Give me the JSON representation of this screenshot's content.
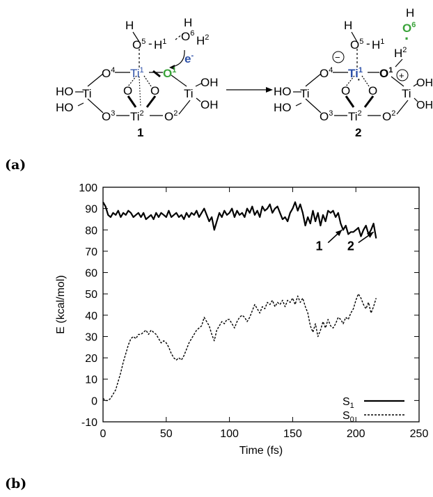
{
  "panels": {
    "a": "(a)",
    "b": "(b)"
  },
  "colors": {
    "ti1": "#2b4fa8",
    "o1": "#3aa33a",
    "o6": "#3aa33a",
    "electron": "#2b4fa8",
    "line": "#000000"
  },
  "scheme": {
    "struct1": {
      "number": "1",
      "atoms": {
        "h_top": "H",
        "o5": "O",
        "o5_sup": "5",
        "h1": "H",
        "h1_sup": "1",
        "o6": "O",
        "o6_sup": "6",
        "h2": "H",
        "h2_sup": "2",
        "electron": "e",
        "electron_sup": "-",
        "o4": "O",
        "o4_sup": "4",
        "ti1": "Ti",
        "ti1_sup": "1",
        "o1": "O",
        "o1_sup": "1",
        "ti_left": "Ti",
        "ho_left_top": "HO",
        "ho_left_bot": "HO",
        "o_mid_left": "O",
        "o_mid_right": "O",
        "ti_right": "Ti",
        "oh_right_top": "OH",
        "oh_right_bot": "OH",
        "o3": "O",
        "o3_sup": "3",
        "ti2": "Ti",
        "ti2_sup": "2",
        "o2": "O",
        "o2_sup": "2"
      }
    },
    "struct2": {
      "number": "2",
      "atoms": {
        "h_top": "H",
        "o5": "O",
        "o5_sup": "5",
        "h1": "H",
        "h1_sup": "1",
        "h_o6": "H",
        "o6": "O",
        "o6_sup": "6",
        "radical": "·",
        "h2": "H",
        "h2_sup": "2",
        "minus": "−",
        "plus": "+",
        "o4": "O",
        "o4_sup": "4",
        "ti1": "Ti",
        "ti1_sup": "1",
        "o1": "O",
        "o1_sup": "1",
        "ti_left": "Ti",
        "ho_left_top": "HO",
        "ho_left_bot": "HO",
        "o_mid_left": "O",
        "o_mid_right": "O",
        "ti_right": "Ti",
        "oh_right_top": "OH",
        "oh_right_bot": "OH",
        "o3": "O",
        "o3_sup": "3",
        "ti2": "Ti",
        "ti2_sup": "2",
        "o2": "O",
        "o2_sup": "2"
      }
    }
  },
  "chart_data": {
    "type": "line",
    "xlabel": "Time (fs)",
    "ylabel": "E (kcal/mol)",
    "xlim": [
      0,
      250
    ],
    "ylim": [
      -10,
      100
    ],
    "xticks": [
      0,
      50,
      100,
      150,
      200,
      250
    ],
    "yticks": [
      -10,
      0,
      10,
      20,
      30,
      40,
      50,
      60,
      70,
      80,
      90,
      100
    ],
    "grid": false,
    "legend_position": "bottom-right",
    "series": [
      {
        "name": "S1",
        "name_main": "S",
        "name_sub": "1",
        "style": "solid",
        "x": [
          0,
          2,
          4,
          6,
          8,
          10,
          12,
          14,
          16,
          18,
          20,
          22,
          24,
          26,
          28,
          30,
          32,
          34,
          36,
          38,
          40,
          42,
          44,
          46,
          48,
          50,
          52,
          54,
          56,
          58,
          60,
          62,
          64,
          66,
          68,
          70,
          72,
          74,
          76,
          78,
          80,
          82,
          84,
          86,
          88,
          90,
          92,
          94,
          96,
          98,
          100,
          102,
          104,
          106,
          108,
          110,
          112,
          114,
          116,
          118,
          120,
          122,
          124,
          126,
          128,
          130,
          132,
          134,
          136,
          138,
          140,
          142,
          144,
          146,
          148,
          150,
          152,
          154,
          156,
          158,
          160,
          162,
          164,
          166,
          168,
          170,
          172,
          174,
          176,
          178,
          180,
          182,
          184,
          186,
          188,
          190,
          192,
          194,
          196,
          198,
          200,
          202,
          204,
          206,
          208,
          210,
          212,
          214,
          216
        ],
        "y": [
          93,
          91,
          87,
          86,
          88,
          87,
          89,
          86,
          88,
          87,
          89,
          88,
          86,
          87,
          88,
          86,
          88,
          85,
          86,
          87,
          85,
          88,
          86,
          88,
          87,
          86,
          89,
          86,
          87,
          88,
          86,
          87,
          85,
          88,
          86,
          88,
          87,
          89,
          86,
          88,
          90,
          87,
          84,
          86,
          80,
          84,
          88,
          86,
          89,
          87,
          88,
          90,
          86,
          89,
          87,
          88,
          86,
          90,
          88,
          91,
          87,
          89,
          86,
          91,
          89,
          90,
          92,
          88,
          90,
          91,
          88,
          85,
          86,
          84,
          88,
          90,
          93,
          89,
          92,
          88,
          82,
          86,
          83,
          89,
          84,
          88,
          82,
          87,
          84,
          89,
          88,
          89,
          86,
          88,
          83,
          80,
          82,
          78,
          79,
          79,
          80,
          81,
          77,
          80,
          82,
          78,
          80,
          83,
          76
        ]
      },
      {
        "name": "S0",
        "name_main": "S",
        "name_sub": "0",
        "style": "dashed",
        "x": [
          0,
          2,
          4,
          6,
          8,
          10,
          12,
          14,
          16,
          18,
          20,
          22,
          24,
          26,
          28,
          30,
          32,
          34,
          36,
          38,
          40,
          42,
          44,
          46,
          48,
          50,
          52,
          54,
          56,
          58,
          60,
          62,
          64,
          66,
          68,
          70,
          72,
          74,
          76,
          78,
          80,
          82,
          84,
          86,
          88,
          90,
          92,
          94,
          96,
          98,
          100,
          102,
          104,
          106,
          108,
          110,
          112,
          114,
          116,
          118,
          120,
          122,
          124,
          126,
          128,
          130,
          132,
          134,
          136,
          138,
          140,
          142,
          144,
          146,
          148,
          150,
          152,
          154,
          156,
          158,
          160,
          162,
          164,
          166,
          168,
          170,
          172,
          174,
          176,
          178,
          180,
          182,
          184,
          186,
          188,
          190,
          192,
          194,
          196,
          198,
          200,
          202,
          204,
          206,
          208,
          210,
          212,
          214,
          216
        ],
        "y": [
          1,
          0,
          0,
          1,
          3,
          5,
          9,
          13,
          18,
          22,
          26,
          29,
          30,
          29,
          31,
          31,
          32,
          33,
          31,
          33,
          32,
          31,
          29,
          27,
          28,
          27,
          25,
          22,
          20,
          19,
          20,
          19,
          21,
          24,
          27,
          29,
          31,
          33,
          34,
          35,
          39,
          37,
          35,
          31,
          28,
          33,
          35,
          37,
          36,
          38,
          38,
          36,
          34,
          37,
          39,
          40,
          39,
          37,
          39,
          42,
          45,
          43,
          41,
          44,
          43,
          46,
          45,
          47,
          44,
          46,
          45,
          47,
          44,
          47,
          46,
          48,
          45,
          49,
          46,
          48,
          44,
          41,
          35,
          32,
          36,
          30,
          33,
          37,
          34,
          38,
          35,
          34,
          36,
          39,
          38,
          36,
          39,
          38,
          41,
          43,
          47,
          50,
          48,
          45,
          43,
          46,
          41,
          44,
          48
        ]
      }
    ],
    "annotations": [
      {
        "label": "1",
        "text_x": 171,
        "text_y": 70.5,
        "arrow_from": [
          178,
          74
        ],
        "arrow_to": [
          189,
          80
        ]
      },
      {
        "label": "2",
        "text_x": 196,
        "text_y": 70.5,
        "arrow_from": [
          202,
          74
        ],
        "arrow_to": [
          214,
          79
        ]
      }
    ]
  }
}
